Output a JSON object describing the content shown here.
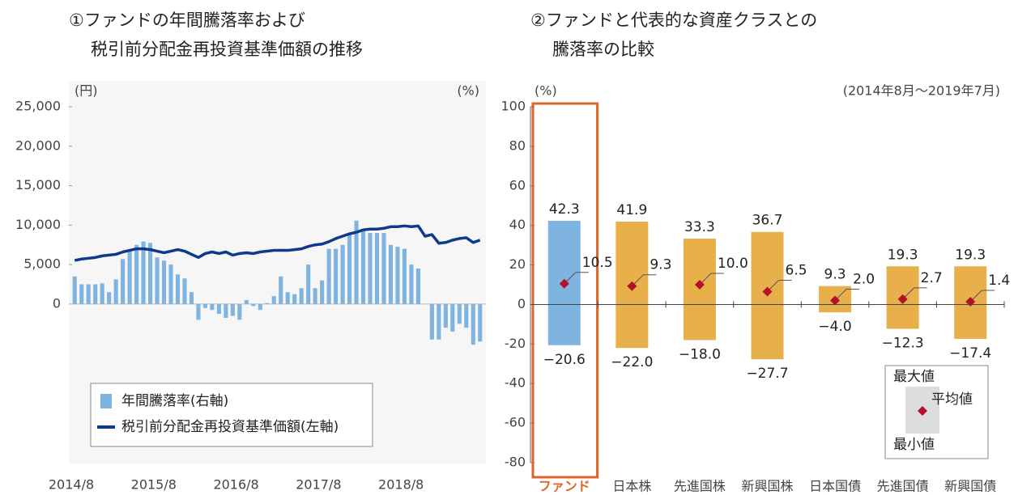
{
  "chart_data": [
    {
      "type": "bar_line",
      "title": [
        "①ファンドの年間騰落率および",
        "税引前分配金再投資基準価額の推移"
      ],
      "y_label": "(円)",
      "y2_label": "(%)",
      "x": [
        "2014/8",
        "2014/9",
        "2014/10",
        "2014/11",
        "2014/12",
        "2015/1",
        "2015/2",
        "2015/3",
        "2015/4",
        "2015/5",
        "2015/6",
        "2015/7",
        "2015/8",
        "2015/9",
        "2015/10",
        "2015/11",
        "2015/12",
        "2016/1",
        "2016/2",
        "2016/3",
        "2016/4",
        "2016/5",
        "2016/6",
        "2016/7",
        "2016/8",
        "2016/9",
        "2016/10",
        "2016/11",
        "2016/12",
        "2017/1",
        "2017/2",
        "2017/3",
        "2017/4",
        "2017/5",
        "2017/6",
        "2017/7",
        "2017/8",
        "2017/9",
        "2017/10",
        "2017/11",
        "2017/12",
        "2018/1",
        "2018/2",
        "2018/3",
        "2018/4",
        "2018/5",
        "2018/6",
        "2018/7",
        "2018/8",
        "2018/9",
        "2018/10",
        "2018/11",
        "2018/12",
        "2019/1",
        "2019/2",
        "2019/3",
        "2019/4",
        "2019/5",
        "2019/6",
        "2019/7"
      ],
      "xticks": [
        "2014/8",
        "2015/8",
        "2016/8",
        "2017/8",
        "2018/8"
      ],
      "series": [
        {
          "name": "年間騰落率(右軸)",
          "kind": "bar",
          "axis": "y2",
          "color": "#7fb3e0",
          "values": [
            14,
            10,
            10,
            10,
            10.5,
            6,
            12.5,
            22.8,
            27,
            30,
            31.7,
            31,
            23.6,
            22,
            20,
            15,
            13,
            6,
            -8,
            -2,
            -3,
            -5,
            -7,
            -6,
            -8,
            2,
            -1,
            -3,
            0.5,
            4,
            14,
            6,
            5,
            8,
            20,
            8,
            12,
            28,
            28,
            30,
            36,
            42.3,
            38,
            36,
            36,
            36,
            30,
            29,
            28,
            20,
            18,
            null,
            -18,
            -18,
            -12,
            -14,
            -10,
            -12,
            -20.6,
            -19
          ]
        },
        {
          "name": "税引前分配金再投資基準価額(左軸)",
          "kind": "line",
          "color": "#0d3a8c",
          "values": [
            5530,
            5700,
            5800,
            5900,
            6100,
            6200,
            6300,
            6600,
            6800,
            7000,
            7000,
            6900,
            6700,
            6500,
            6700,
            6900,
            6700,
            6300,
            5900,
            6400,
            6600,
            6400,
            6600,
            6200,
            6400,
            6500,
            6400,
            6600,
            6700,
            6800,
            6800,
            6800,
            6900,
            7000,
            7300,
            7500,
            7600,
            7900,
            8300,
            8600,
            8900,
            9100,
            9400,
            9500,
            9500,
            9600,
            9800,
            9800,
            9900,
            9800,
            9900,
            8600,
            8800,
            7700,
            7800,
            8100,
            8300,
            8400,
            7800,
            8100
          ]
        }
      ],
      "ylim": [
        -20000,
        25000
      ],
      "yticks": [
        0,
        {
          "value": 5000,
          "label": "5,000"
        },
        {
          "value": 10000,
          "label": "10,000"
        },
        {
          "value": 15000,
          "label": "15,000"
        },
        {
          "value": 20000,
          "label": "20,000"
        },
        {
          "value": 25000,
          "label": "25,000"
        }
      ],
      "y2lim": [
        -80,
        100
      ]
    },
    {
      "type": "floating_bar",
      "title": [
        "②ファンドと代表的な資産クラスとの",
        "騰落率の比較"
      ],
      "y_label": "(%)",
      "note": "(2014年8月～2019年7月)",
      "categories": [
        "ファンド",
        "日本株",
        "先進国株",
        "新興国株",
        "日本国債",
        "先進国債",
        "新興国債"
      ],
      "highlight": 0,
      "highlight_color": "#e0652a",
      "colors": [
        "#7fb3e0",
        "#e8b04a",
        "#e8b04a",
        "#e8b04a",
        "#e8b04a",
        "#e8b04a",
        "#e8b04a"
      ],
      "marker_color": "#b3122a",
      "series": [
        {
          "name": "最大値",
          "values": [
            42.3,
            41.9,
            33.3,
            36.7,
            9.3,
            19.3,
            19.3
          ]
        },
        {
          "name": "平均値",
          "values": [
            10.5,
            9.3,
            10.0,
            6.5,
            2.0,
            2.7,
            1.4
          ],
          "value_labels": [
            "10.5",
            "9.3",
            "10.0",
            "6.5",
            "2.0",
            "2.7",
            "1.4"
          ]
        },
        {
          "name": "最小値",
          "values": [
            -20.6,
            -22.0,
            -18.0,
            -27.7,
            -4.0,
            -12.3,
            -17.4
          ],
          "value_labels": [
            "−20.6",
            "−22.0",
            "−18.0",
            "−27.7",
            "−4.0",
            "−12.3",
            "−17.4"
          ]
        }
      ],
      "ylim": [
        -80,
        100
      ],
      "yticks": [
        -80,
        -60,
        -40,
        -20,
        0,
        20,
        40,
        60,
        80,
        100
      ]
    }
  ]
}
